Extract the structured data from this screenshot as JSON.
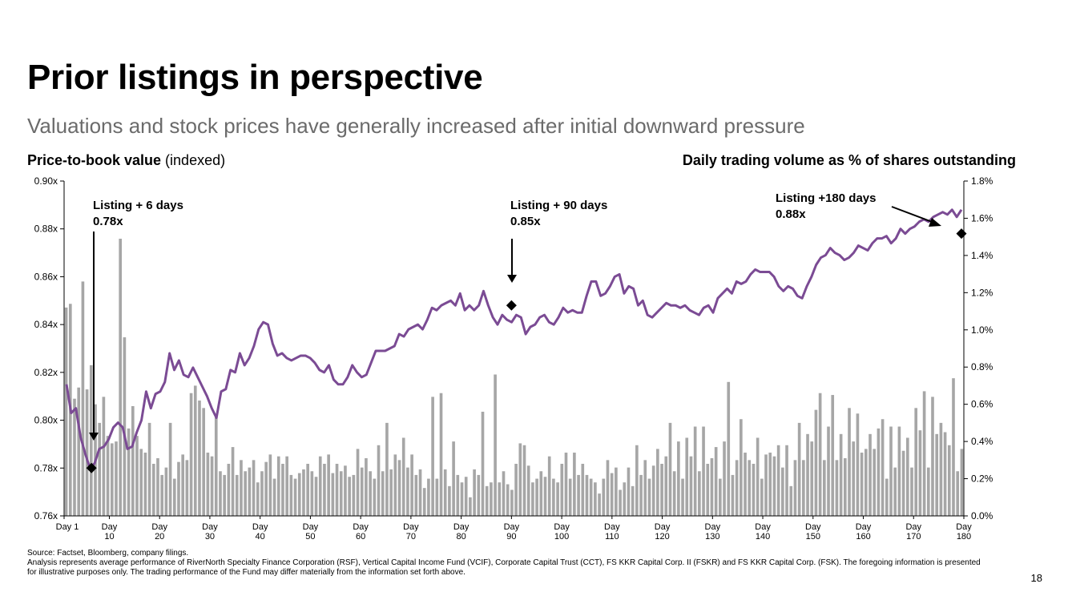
{
  "page": {
    "title": "Prior listings in perspective",
    "subtitle": "Valuations and stock prices have generally increased after initial downward pressure",
    "left_heading_bold": "Price-to-book value",
    "left_heading_rest": " (indexed)",
    "right_heading": "Daily trading volume as % of shares outstanding",
    "source": "Source: Factset, Bloomberg, company filings.",
    "note": "Analysis represents average performance of RiverNorth Specialty Finance Corporation (RSF), Vertical Capital Income Fund (VCIF), Corporate Capital Trust (CCT), FS KKR Capital Corp. II (FSKR) and FS KKR Capital Corp. (FSK). The foregoing information is presented for illustrative purposes only. The trading performance of the Fund may differ materially from the information set forth above.",
    "page_number": "18"
  },
  "chart_data": {
    "type": "bar+line",
    "y_left": {
      "label": "Price-to-book value (indexed)",
      "range": [
        0.76,
        0.9
      ],
      "ticks": [
        "0.76x",
        "0.78x",
        "0.80x",
        "0.82x",
        "0.84x",
        "0.86x",
        "0.88x",
        "0.90x"
      ]
    },
    "y_right": {
      "label": "Daily trading volume as % of shares outstanding",
      "range": [
        0,
        1.8
      ],
      "ticks": [
        "0.0%",
        "0.2%",
        "0.4%",
        "0.6%",
        "0.8%",
        "1.0%",
        "1.2%",
        "1.4%",
        "1.6%",
        "1.8%"
      ]
    },
    "x_ticks": [
      {
        "day": 1,
        "lines": [
          "Day 1"
        ]
      },
      {
        "day": 10,
        "lines": [
          "Day",
          "10"
        ]
      },
      {
        "day": 20,
        "lines": [
          "Day",
          "20"
        ]
      },
      {
        "day": 30,
        "lines": [
          "Day",
          "30"
        ]
      },
      {
        "day": 40,
        "lines": [
          "Day",
          "40"
        ]
      },
      {
        "day": 50,
        "lines": [
          "Day",
          "50"
        ]
      },
      {
        "day": 60,
        "lines": [
          "Day",
          "60"
        ]
      },
      {
        "day": 70,
        "lines": [
          "Day",
          "70"
        ]
      },
      {
        "day": 80,
        "lines": [
          "Day",
          "80"
        ]
      },
      {
        "day": 90,
        "lines": [
          "Day",
          "90"
        ]
      },
      {
        "day": 100,
        "lines": [
          "Day",
          "100"
        ]
      },
      {
        "day": 110,
        "lines": [
          "Day",
          "110"
        ]
      },
      {
        "day": 120,
        "lines": [
          "Day",
          "120"
        ]
      },
      {
        "day": 130,
        "lines": [
          "Day",
          "130"
        ]
      },
      {
        "day": 140,
        "lines": [
          "Day",
          "140"
        ]
      },
      {
        "day": 150,
        "lines": [
          "Day",
          "150"
        ]
      },
      {
        "day": 160,
        "lines": [
          "Day",
          "160"
        ]
      },
      {
        "day": 170,
        "lines": [
          "Day",
          "170"
        ]
      },
      {
        "day": 180,
        "lines": [
          "Day",
          "180"
        ]
      }
    ],
    "volume_series": {
      "name": "Daily trading volume as % of shares outstanding",
      "color": "#a6a6a6",
      "values": [
        1.12,
        1.14,
        0.63,
        0.69,
        1.26,
        0.68,
        0.81,
        0.6,
        0.5,
        0.64,
        0.43,
        0.39,
        0.4,
        1.49,
        0.96,
        0.47,
        0.59,
        0.43,
        0.36,
        0.34,
        0.5,
        0.28,
        0.31,
        0.22,
        0.26,
        0.5,
        0.2,
        0.29,
        0.33,
        0.3,
        0.66,
        0.7,
        0.62,
        0.58,
        0.34,
        0.32,
        0.53,
        0.24,
        0.22,
        0.28,
        0.37,
        0.22,
        0.3,
        0.24,
        0.26,
        0.3,
        0.18,
        0.24,
        0.29,
        0.33,
        0.2,
        0.32,
        0.28,
        0.32,
        0.22,
        0.2,
        0.23,
        0.25,
        0.28,
        0.24,
        0.21,
        0.32,
        0.28,
        0.33,
        0.23,
        0.28,
        0.24,
        0.27,
        0.21,
        0.22,
        0.36,
        0.26,
        0.31,
        0.24,
        0.2,
        0.38,
        0.24,
        0.5,
        0.25,
        0.33,
        0.3,
        0.42,
        0.26,
        0.33,
        0.22,
        0.25,
        0.15,
        0.2,
        0.64,
        0.2,
        0.66,
        0.25,
        0.16,
        0.4,
        0.22,
        0.18,
        0.21,
        0.1,
        0.25,
        0.22,
        0.56,
        0.16,
        0.18,
        0.76,
        0.18,
        0.24,
        0.17,
        0.14,
        0.28,
        0.39,
        0.38,
        0.27,
        0.18,
        0.2,
        0.24,
        0.21,
        0.32,
        0.2,
        0.18,
        0.28,
        0.34,
        0.2,
        0.34,
        0.22,
        0.28,
        0.22,
        0.2,
        0.18,
        0.12,
        0.2,
        0.3,
        0.23,
        0.26,
        0.14,
        0.18,
        0.26,
        0.16,
        0.38,
        0.22,
        0.3,
        0.2,
        0.27,
        0.36,
        0.28,
        0.32,
        0.5,
        0.24,
        0.4,
        0.2,
        0.42,
        0.32,
        0.48,
        0.24,
        0.48,
        0.28,
        0.31,
        0.37,
        0.2,
        0.4,
        0.72,
        0.22,
        0.3,
        0.52,
        0.34,
        0.3,
        0.28,
        0.42,
        0.2,
        0.33,
        0.34,
        0.32,
        0.38,
        0.26,
        0.38,
        0.16,
        0.3,
        0.5,
        0.3,
        0.44,
        0.4,
        0.57,
        0.66,
        0.3,
        0.48,
        0.65,
        0.3,
        0.44,
        0.31,
        0.58,
        0.4,
        0.55,
        0.34,
        0.36,
        0.44,
        0.36,
        0.47,
        0.52,
        0.2,
        0.48,
        0.26,
        0.48,
        0.35,
        0.42,
        0.26,
        0.58,
        0.46,
        0.67,
        0.26,
        0.64,
        0.44,
        0.5,
        0.45,
        0.38,
        0.74,
        0.24,
        0.36
      ]
    },
    "pb_series": {
      "name": "Price-to-book value (indexed)",
      "color": "#7b4b94",
      "values": [
        0.815,
        0.803,
        0.805,
        0.793,
        0.786,
        0.78,
        0.782,
        0.788,
        0.789,
        0.792,
        0.797,
        0.799,
        0.797,
        0.788,
        0.789,
        0.795,
        0.8,
        0.812,
        0.805,
        0.811,
        0.812,
        0.816,
        0.828,
        0.821,
        0.825,
        0.819,
        0.818,
        0.822,
        0.818,
        0.814,
        0.81,
        0.805,
        0.801,
        0.812,
        0.813,
        0.821,
        0.82,
        0.828,
        0.823,
        0.826,
        0.831,
        0.838,
        0.841,
        0.84,
        0.832,
        0.827,
        0.828,
        0.826,
        0.825,
        0.826,
        0.827,
        0.827,
        0.826,
        0.824,
        0.821,
        0.82,
        0.823,
        0.817,
        0.815,
        0.815,
        0.818,
        0.823,
        0.82,
        0.818,
        0.819,
        0.824,
        0.829,
        0.829,
        0.829,
        0.83,
        0.831,
        0.836,
        0.835,
        0.838,
        0.839,
        0.84,
        0.838,
        0.842,
        0.847,
        0.846,
        0.848,
        0.849,
        0.85,
        0.848,
        0.853,
        0.846,
        0.848,
        0.846,
        0.848,
        0.854,
        0.848,
        0.843,
        0.84,
        0.844,
        0.842,
        0.841,
        0.844,
        0.843,
        0.836,
        0.839,
        0.84,
        0.843,
        0.844,
        0.841,
        0.84,
        0.843,
        0.847,
        0.845,
        0.846,
        0.845,
        0.845,
        0.852,
        0.858,
        0.858,
        0.852,
        0.853,
        0.856,
        0.86,
        0.861,
        0.853,
        0.856,
        0.855,
        0.848,
        0.85,
        0.844,
        0.843,
        0.845,
        0.847,
        0.849,
        0.848,
        0.848,
        0.847,
        0.848,
        0.846,
        0.845,
        0.844,
        0.847,
        0.848,
        0.845,
        0.851,
        0.853,
        0.855,
        0.853,
        0.858,
        0.857,
        0.858,
        0.861,
        0.863,
        0.862,
        0.862,
        0.862,
        0.86,
        0.856,
        0.854,
        0.856,
        0.855,
        0.852,
        0.851,
        0.856,
        0.86,
        0.865,
        0.868,
        0.869,
        0.872,
        0.87,
        0.869,
        0.867,
        0.868,
        0.87,
        0.873,
        0.872,
        0.871,
        0.874,
        0.876,
        0.876,
        0.877,
        0.874,
        0.876,
        0.88,
        0.878,
        0.88,
        0.881,
        0.883,
        0.884,
        0.883,
        0.885,
        0.886,
        0.887,
        0.886,
        0.888,
        0.885,
        0.888
      ],
      "markers": [
        {
          "day": 6,
          "value": 0.78
        },
        {
          "day": 90,
          "value": 0.848
        },
        {
          "day": 180,
          "value": 0.878
        }
      ]
    },
    "annotations": [
      {
        "line1": "Listing + 6 days",
        "line2": "0.78x"
      },
      {
        "line1": "Listing + 90 days",
        "line2": "0.85x"
      },
      {
        "line1": "Listing +180 days",
        "line2": "0.88x"
      }
    ]
  }
}
